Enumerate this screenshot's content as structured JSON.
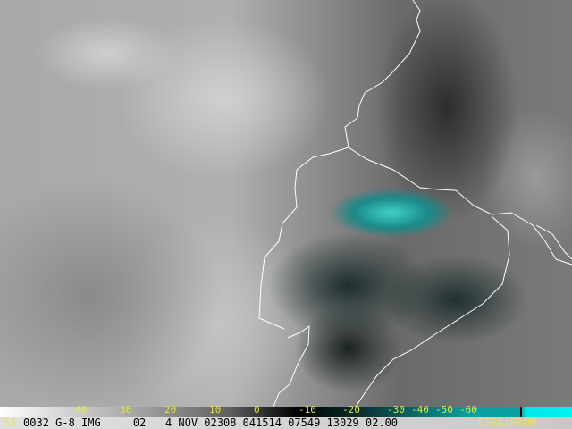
{
  "colorbar": {
    "labels": [
      "40",
      "30",
      "20",
      "10",
      "0",
      "-10",
      "-20",
      "-30",
      "-40",
      "-50",
      "-60"
    ],
    "unit_hint": "temperature-scale",
    "colors": {
      "warm": "#ffffff",
      "cold": "#000000",
      "enhanced": "#0aa0a0",
      "coldest": "#00f0f0",
      "label": "#e8e830"
    }
  },
  "info": {
    "prefix": "SS",
    "line": "0032 G-8 IMG     02   4 NOV 02308 041514 07549 13029 02.00",
    "credit": "CIRA/RAMM"
  },
  "imagery": {
    "type": "infrared satellite image",
    "border_color": "#ffffff"
  }
}
